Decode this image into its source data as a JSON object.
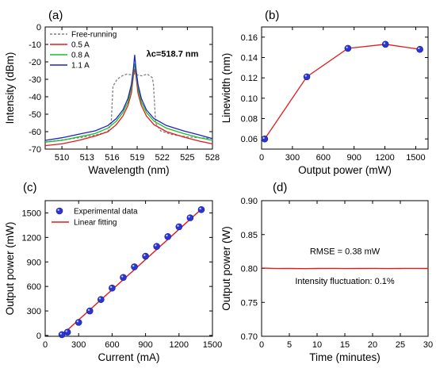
{
  "chart_data": [
    {
      "id": "a",
      "type": "line",
      "panel_label": "(a)",
      "xlabel": "Wavelength (nm)",
      "ylabel": "Intensity (dBm)",
      "xlim": [
        508,
        528
      ],
      "ylim": [
        -70,
        0
      ],
      "xticks": [
        510,
        513,
        516,
        519,
        522,
        525,
        528
      ],
      "yticks": [
        -70,
        -60,
        -50,
        -40,
        -30,
        -20,
        -10,
        0
      ],
      "legend_position": "top-left",
      "annotation": {
        "text": "λc=518.7 nm",
        "x": 520.1,
        "y": -17
      },
      "series": [
        {
          "name": "Free-running",
          "color": "#808080",
          "dashed": true,
          "x": [
            508,
            512,
            514,
            515.5,
            515.9,
            516.1,
            516.6,
            517.2,
            517.8,
            518.4,
            518.7,
            519.0,
            519.6,
            520.2,
            520.8,
            520.95,
            521.2,
            521.8,
            523,
            525,
            528
          ],
          "y": [
            -66,
            -63.5,
            -62,
            -60,
            -55,
            -34,
            -30,
            -28,
            -27,
            -27.5,
            -26.8,
            -27.5,
            -28,
            -27,
            -29,
            -33,
            -55,
            -59.5,
            -61.5,
            -63,
            -64
          ]
        },
        {
          "name": "0.5 A",
          "color": "#e41a1c",
          "x": [
            508,
            510,
            512,
            514,
            515.5,
            516.5,
            517.3,
            517.9,
            518.3,
            518.55,
            518.7,
            518.85,
            519.1,
            519.5,
            520.1,
            521,
            522.5,
            524.5,
            526.5,
            528
          ],
          "y": [
            -68,
            -67,
            -65,
            -62.5,
            -60,
            -56,
            -51,
            -45,
            -38,
            -28,
            -24,
            -28,
            -38,
            -45,
            -51,
            -56,
            -60,
            -63,
            -65.5,
            -67
          ]
        },
        {
          "name": "0.8 A",
          "color": "#17c024",
          "x": [
            508,
            510,
            512,
            514,
            515.5,
            516.5,
            517.3,
            517.9,
            518.3,
            518.55,
            518.7,
            518.85,
            519.1,
            519.5,
            520.1,
            521,
            522.5,
            524.5,
            526.5,
            528
          ],
          "y": [
            -66,
            -65,
            -63,
            -61,
            -58,
            -54,
            -49,
            -43,
            -35,
            -26,
            -21,
            -26,
            -35,
            -43,
            -49,
            -54,
            -58,
            -61,
            -63.5,
            -65
          ]
        },
        {
          "name": "1.1 A",
          "color": "#1f23c4",
          "x": [
            508,
            510,
            512,
            514,
            515.5,
            516.5,
            517.3,
            517.9,
            518.3,
            518.55,
            518.7,
            518.85,
            519.1,
            519.5,
            520.1,
            521,
            522.5,
            524.5,
            526.5,
            528
          ],
          "y": [
            -65,
            -63.5,
            -61.5,
            -59.5,
            -56.5,
            -52.5,
            -47.5,
            -41,
            -33,
            -24,
            -16,
            -24,
            -33,
            -41,
            -47.5,
            -52.5,
            -56.5,
            -59.5,
            -62,
            -64
          ]
        }
      ]
    },
    {
      "id": "b",
      "type": "line",
      "panel_label": "(b)",
      "xlabel": "Output power (mW)",
      "ylabel": "Linewidth (nm)",
      "xlim": [
        0,
        1620
      ],
      "ylim": [
        0.05,
        0.17
      ],
      "xticks": [
        0,
        300,
        600,
        900,
        1200,
        1500
      ],
      "yticks": [
        0.06,
        0.08,
        0.1,
        0.12,
        0.14,
        0.16
      ],
      "line_color": "#e41a1c",
      "marker_color": "#2b35d6",
      "x": [
        30,
        440,
        840,
        1205,
        1540
      ],
      "y": [
        0.06,
        0.121,
        0.149,
        0.153,
        0.148
      ]
    },
    {
      "id": "c",
      "type": "scatter",
      "panel_label": "(c)",
      "xlabel": "Current (mA)",
      "ylabel": "Output power (mW)",
      "xlim": [
        0,
        1500
      ],
      "ylim": [
        -10,
        1650
      ],
      "xticks": [
        0,
        300,
        600,
        900,
        1200,
        1500
      ],
      "yticks": [
        0,
        300,
        600,
        900,
        1200,
        1500
      ],
      "legend_position": "top-left",
      "legend": [
        "Experimental data",
        "Linear fitting"
      ],
      "marker_color": "#2b35d6",
      "fit_color": "#e41a1c",
      "x": [
        150,
        200,
        300,
        400,
        500,
        600,
        700,
        800,
        900,
        1000,
        1100,
        1200,
        1300,
        1400
      ],
      "y": [
        10,
        40,
        160,
        300,
        440,
        580,
        710,
        840,
        970,
        1090,
        1210,
        1330,
        1440,
        1540
      ],
      "fit": {
        "x": [
          145,
          1400
        ],
        "y": [
          0,
          1545
        ]
      }
    },
    {
      "id": "d",
      "type": "line",
      "panel_label": "(d)",
      "xlabel": "Time (minutes)",
      "ylabel": "Output power (W)",
      "xlim": [
        0,
        30
      ],
      "ylim": [
        0.7,
        0.9
      ],
      "xticks": [
        0,
        5,
        10,
        15,
        20,
        25,
        30
      ],
      "yticks": [
        0.7,
        0.75,
        0.8,
        0.85,
        0.9
      ],
      "line_color": "#e41a1c",
      "annotations": [
        "RMSE = 0.38 mW",
        "Intensity fluctuation: 0.1%"
      ],
      "x": [
        0,
        1,
        2,
        3,
        5,
        8,
        10,
        13,
        15,
        18,
        20,
        23,
        25,
        28,
        30
      ],
      "y": [
        0.8005,
        0.8003,
        0.8001,
        0.7999,
        0.8,
        0.7998,
        0.8,
        0.8001,
        0.7999,
        0.8,
        0.8001,
        0.7999,
        0.8,
        0.8001,
        0.8
      ]
    }
  ]
}
